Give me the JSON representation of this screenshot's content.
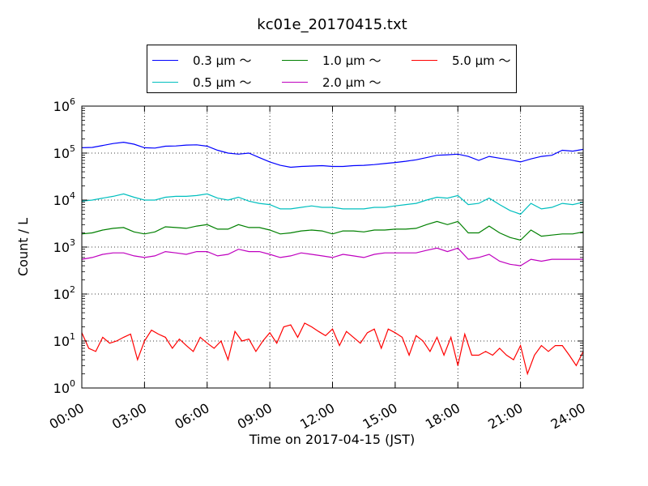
{
  "chart_data": {
    "type": "line",
    "title": "kc01e_20170415.txt",
    "xlabel": "Time on 2017-04-15 (JST)",
    "ylabel": "Count / L",
    "xscale": "linear",
    "yscale": "log",
    "xlim": [
      "2017-04-15 00:00",
      "2017-04-16 00:00"
    ],
    "ylim": [
      1,
      1000000
    ],
    "grid": true,
    "legend_position": "top-center",
    "x_tick_labels": [
      "00:00",
      "03:00",
      "06:00",
      "09:00",
      "12:00",
      "15:00",
      "18:00",
      "21:00",
      "24:00"
    ],
    "y_tick_labels": [
      {
        "base": "10",
        "exp": "0"
      },
      {
        "base": "10",
        "exp": "1"
      },
      {
        "base": "10",
        "exp": "2"
      },
      {
        "base": "10",
        "exp": "3"
      },
      {
        "base": "10",
        "exp": "4"
      },
      {
        "base": "10",
        "exp": "5"
      },
      {
        "base": "10",
        "exp": "6"
      }
    ],
    "series": [
      {
        "name": "0.3 μm ～",
        "color": "#0000ff",
        "points": [
          [
            "00:00",
            130000
          ],
          [
            "00:30",
            132000
          ],
          [
            "01:00",
            145000
          ],
          [
            "01:30",
            160000
          ],
          [
            "02:00",
            170000
          ],
          [
            "02:30",
            155000
          ],
          [
            "03:00",
            130000
          ],
          [
            "03:30",
            128000
          ],
          [
            "04:00",
            140000
          ],
          [
            "04:30",
            142000
          ],
          [
            "05:00",
            148000
          ],
          [
            "05:30",
            150000
          ],
          [
            "06:00",
            140000
          ],
          [
            "06:30",
            115000
          ],
          [
            "07:00",
            100000
          ],
          [
            "07:30",
            95000
          ],
          [
            "08:00",
            100000
          ],
          [
            "08:30",
            80000
          ],
          [
            "09:00",
            65000
          ],
          [
            "09:30",
            55000
          ],
          [
            "10:00",
            50000
          ],
          [
            "10:30",
            52000
          ],
          [
            "11:00",
            53000
          ],
          [
            "11:30",
            54000
          ],
          [
            "12:00",
            52000
          ],
          [
            "12:30",
            52000
          ],
          [
            "13:00",
            54000
          ],
          [
            "13:30",
            55000
          ],
          [
            "14:00",
            57000
          ],
          [
            "14:30",
            60000
          ],
          [
            "15:00",
            63000
          ],
          [
            "15:30",
            67000
          ],
          [
            "16:00",
            72000
          ],
          [
            "16:30",
            80000
          ],
          [
            "17:00",
            90000
          ],
          [
            "17:30",
            92000
          ],
          [
            "18:00",
            95000
          ],
          [
            "18:30",
            85000
          ],
          [
            "19:00",
            70000
          ],
          [
            "19:30",
            85000
          ],
          [
            "20:00",
            78000
          ],
          [
            "20:30",
            72000
          ],
          [
            "21:00",
            65000
          ],
          [
            "21:30",
            75000
          ],
          [
            "22:00",
            85000
          ],
          [
            "22:30",
            90000
          ],
          [
            "23:00",
            115000
          ],
          [
            "23:30",
            110000
          ],
          [
            "24:00",
            120000
          ]
        ]
      },
      {
        "name": "0.5 μm ～",
        "color": "#00bfbf",
        "points": [
          [
            "00:00",
            9500
          ],
          [
            "00:30",
            10000
          ],
          [
            "01:00",
            11000
          ],
          [
            "01:30",
            12000
          ],
          [
            "02:00",
            13500
          ],
          [
            "02:30",
            11500
          ],
          [
            "03:00",
            10000
          ],
          [
            "03:30",
            10000
          ],
          [
            "04:00",
            11500
          ],
          [
            "04:30",
            12000
          ],
          [
            "05:00",
            12000
          ],
          [
            "05:30",
            12500
          ],
          [
            "06:00",
            13500
          ],
          [
            "06:30",
            11000
          ],
          [
            "07:00",
            10000
          ],
          [
            "07:30",
            11500
          ],
          [
            "08:00",
            9500
          ],
          [
            "08:30",
            8500
          ],
          [
            "09:00",
            8000
          ],
          [
            "09:30",
            6500
          ],
          [
            "10:00",
            6500
          ],
          [
            "10:30",
            7000
          ],
          [
            "11:00",
            7500
          ],
          [
            "11:30",
            7000
          ],
          [
            "12:00",
            7000
          ],
          [
            "12:30",
            6500
          ],
          [
            "13:00",
            6500
          ],
          [
            "13:30",
            6500
          ],
          [
            "14:00",
            7000
          ],
          [
            "14:30",
            7000
          ],
          [
            "15:00",
            7500
          ],
          [
            "15:30",
            8000
          ],
          [
            "16:00",
            8500
          ],
          [
            "16:30",
            10000
          ],
          [
            "17:00",
            11500
          ],
          [
            "17:30",
            11000
          ],
          [
            "18:00",
            12500
          ],
          [
            "18:30",
            8000
          ],
          [
            "19:00",
            8500
          ],
          [
            "19:30",
            11000
          ],
          [
            "20:00",
            8000
          ],
          [
            "20:30",
            6000
          ],
          [
            "21:00",
            5000
          ],
          [
            "21:30",
            8500
          ],
          [
            "22:00",
            6500
          ],
          [
            "22:30",
            7000
          ],
          [
            "23:00",
            8500
          ],
          [
            "23:30",
            8000
          ],
          [
            "24:00",
            9000
          ]
        ]
      },
      {
        "name": "1.0 μm ～",
        "color": "#008000",
        "points": [
          [
            "00:00",
            1900
          ],
          [
            "00:30",
            2000
          ],
          [
            "01:00",
            2300
          ],
          [
            "01:30",
            2500
          ],
          [
            "02:00",
            2600
          ],
          [
            "02:30",
            2100
          ],
          [
            "03:00",
            1900
          ],
          [
            "03:30",
            2100
          ],
          [
            "04:00",
            2700
          ],
          [
            "04:30",
            2600
          ],
          [
            "05:00",
            2500
          ],
          [
            "05:30",
            2800
          ],
          [
            "06:00",
            3000
          ],
          [
            "06:30",
            2400
          ],
          [
            "07:00",
            2400
          ],
          [
            "07:30",
            3000
          ],
          [
            "08:00",
            2600
          ],
          [
            "08:30",
            2600
          ],
          [
            "09:00",
            2300
          ],
          [
            "09:30",
            1900
          ],
          [
            "10:00",
            2000
          ],
          [
            "10:30",
            2200
          ],
          [
            "11:00",
            2300
          ],
          [
            "11:30",
            2200
          ],
          [
            "12:00",
            1900
          ],
          [
            "12:30",
            2200
          ],
          [
            "13:00",
            2200
          ],
          [
            "13:30",
            2100
          ],
          [
            "14:00",
            2300
          ],
          [
            "14:30",
            2300
          ],
          [
            "15:00",
            2400
          ],
          [
            "15:30",
            2400
          ],
          [
            "16:00",
            2500
          ],
          [
            "16:30",
            3000
          ],
          [
            "17:00",
            3500
          ],
          [
            "17:30",
            3000
          ],
          [
            "18:00",
            3500
          ],
          [
            "18:30",
            2000
          ],
          [
            "19:00",
            2000
          ],
          [
            "19:30",
            2800
          ],
          [
            "20:00",
            2000
          ],
          [
            "20:30",
            1600
          ],
          [
            "21:00",
            1400
          ],
          [
            "21:30",
            2300
          ],
          [
            "22:00",
            1700
          ],
          [
            "22:30",
            1800
          ],
          [
            "23:00",
            1900
          ],
          [
            "23:30",
            1900
          ],
          [
            "24:00",
            2100
          ]
        ]
      },
      {
        "name": "2.0 μm ～",
        "color": "#bf00bf",
        "points": [
          [
            "00:00",
            550
          ],
          [
            "00:30",
            600
          ],
          [
            "01:00",
            700
          ],
          [
            "01:30",
            750
          ],
          [
            "02:00",
            750
          ],
          [
            "02:30",
            650
          ],
          [
            "03:00",
            600
          ],
          [
            "03:30",
            650
          ],
          [
            "04:00",
            800
          ],
          [
            "04:30",
            750
          ],
          [
            "05:00",
            700
          ],
          [
            "05:30",
            800
          ],
          [
            "06:00",
            800
          ],
          [
            "06:30",
            650
          ],
          [
            "07:00",
            700
          ],
          [
            "07:30",
            900
          ],
          [
            "08:00",
            800
          ],
          [
            "08:30",
            800
          ],
          [
            "09:00",
            700
          ],
          [
            "09:30",
            600
          ],
          [
            "10:00",
            650
          ],
          [
            "10:30",
            750
          ],
          [
            "11:00",
            700
          ],
          [
            "11:30",
            650
          ],
          [
            "12:00",
            600
          ],
          [
            "12:30",
            700
          ],
          [
            "13:00",
            650
          ],
          [
            "13:30",
            600
          ],
          [
            "14:00",
            700
          ],
          [
            "14:30",
            750
          ],
          [
            "15:00",
            750
          ],
          [
            "15:30",
            750
          ],
          [
            "16:00",
            750
          ],
          [
            "16:30",
            850
          ],
          [
            "17:00",
            950
          ],
          [
            "17:30",
            800
          ],
          [
            "18:00",
            950
          ],
          [
            "18:30",
            550
          ],
          [
            "19:00",
            600
          ],
          [
            "19:30",
            700
          ],
          [
            "20:00",
            500
          ],
          [
            "20:30",
            430
          ],
          [
            "21:00",
            400
          ],
          [
            "21:30",
            550
          ],
          [
            "22:00",
            500
          ],
          [
            "22:30",
            550
          ],
          [
            "23:00",
            550
          ],
          [
            "23:30",
            550
          ],
          [
            "24:00",
            550
          ]
        ]
      },
      {
        "name": "5.0 μm ～",
        "color": "#ff0000",
        "points": [
          [
            "00:00",
            15
          ],
          [
            "00:20",
            7
          ],
          [
            "00:40",
            6
          ],
          [
            "01:00",
            12
          ],
          [
            "01:20",
            9
          ],
          [
            "01:40",
            10
          ],
          [
            "02:00",
            12
          ],
          [
            "02:20",
            14
          ],
          [
            "02:40",
            4
          ],
          [
            "03:00",
            10
          ],
          [
            "03:20",
            17
          ],
          [
            "03:40",
            14
          ],
          [
            "04:00",
            12
          ],
          [
            "04:20",
            7
          ],
          [
            "04:40",
            11
          ],
          [
            "05:00",
            8
          ],
          [
            "05:20",
            6
          ],
          [
            "05:40",
            12
          ],
          [
            "06:00",
            9
          ],
          [
            "06:20",
            7
          ],
          [
            "06:40",
            10
          ],
          [
            "07:00",
            4
          ],
          [
            "07:20",
            16
          ],
          [
            "07:40",
            10
          ],
          [
            "08:00",
            11
          ],
          [
            "08:20",
            6
          ],
          [
            "08:40",
            10
          ],
          [
            "09:00",
            15
          ],
          [
            "09:20",
            9
          ],
          [
            "09:40",
            20
          ],
          [
            "10:00",
            22
          ],
          [
            "10:20",
            12
          ],
          [
            "10:40",
            24
          ],
          [
            "11:00",
            20
          ],
          [
            "11:20",
            16
          ],
          [
            "11:40",
            13
          ],
          [
            "12:00",
            18
          ],
          [
            "12:20",
            8
          ],
          [
            "12:40",
            16
          ],
          [
            "13:00",
            12
          ],
          [
            "13:20",
            9
          ],
          [
            "13:40",
            15
          ],
          [
            "14:00",
            18
          ],
          [
            "14:20",
            7
          ],
          [
            "14:40",
            18
          ],
          [
            "15:00",
            15
          ],
          [
            "15:20",
            12
          ],
          [
            "15:40",
            5
          ],
          [
            "16:00",
            13
          ],
          [
            "16:20",
            10
          ],
          [
            "16:40",
            6
          ],
          [
            "17:00",
            12
          ],
          [
            "17:20",
            5
          ],
          [
            "17:40",
            12
          ],
          [
            "18:00",
            3
          ],
          [
            "18:20",
            14
          ],
          [
            "18:40",
            5
          ],
          [
            "19:00",
            5
          ],
          [
            "19:20",
            6
          ],
          [
            "19:40",
            5
          ],
          [
            "20:00",
            7
          ],
          [
            "20:20",
            5
          ],
          [
            "20:40",
            4
          ],
          [
            "21:00",
            8
          ],
          [
            "21:20",
            2
          ],
          [
            "21:40",
            5
          ],
          [
            "22:00",
            8
          ],
          [
            "22:20",
            6
          ],
          [
            "22:40",
            8
          ],
          [
            "23:00",
            8
          ],
          [
            "23:20",
            5
          ],
          [
            "23:40",
            3
          ],
          [
            "24:00",
            6
          ]
        ]
      }
    ]
  }
}
